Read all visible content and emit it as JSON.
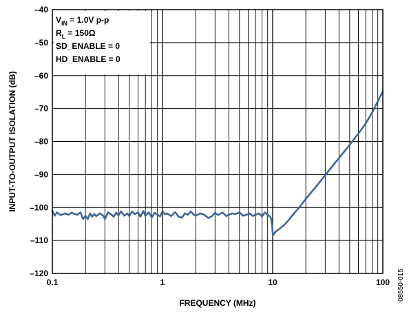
{
  "chart_data": {
    "type": "line",
    "xlabel": "FREQUENCY (MHz)",
    "ylabel": "INPUT-TO-OUTPUT ISOLATION (dB)",
    "x_scale": "log",
    "xlim": [
      0.1,
      100
    ],
    "ylim": [
      -120,
      -40
    ],
    "x_ticks": [
      0.1,
      1,
      10,
      100
    ],
    "x_tick_labels": [
      "0.1",
      "1",
      "10",
      "100"
    ],
    "y_ticks": [
      -40,
      -50,
      -60,
      -70,
      -80,
      -90,
      -100,
      -110,
      -120
    ],
    "y_tick_labels": [
      "–40",
      "–50",
      "–60",
      "–70",
      "–80",
      "–90",
      "–100",
      "–110",
      "–120"
    ],
    "grid": true,
    "line_color": "#3f6796",
    "annotation_lines": [
      {
        "main": "V",
        "sub": "IN",
        "rest": " = 1.0V p-p"
      },
      {
        "main": "R",
        "sub": "L",
        "rest": " = 150Ω"
      },
      {
        "main": "SD_ENABLE = 0",
        "sub": "",
        "rest": ""
      },
      {
        "main": "HD_ENABLE = 0",
        "sub": "",
        "rest": ""
      }
    ],
    "side_id": "08550-015",
    "series": [
      {
        "x": [
          0.1,
          0.105,
          0.11,
          0.115,
          0.12,
          0.13,
          0.14,
          0.15,
          0.16,
          0.17,
          0.18,
          0.19,
          0.2,
          0.21,
          0.22,
          0.23,
          0.24,
          0.25,
          0.27,
          0.29,
          0.3,
          0.32,
          0.34,
          0.36,
          0.38,
          0.4,
          0.42,
          0.45,
          0.48,
          0.5,
          0.53,
          0.56,
          0.6,
          0.63,
          0.67,
          0.7,
          0.75,
          0.8,
          0.85,
          0.9,
          0.95,
          1.0,
          1.05,
          1.1,
          1.2,
          1.3,
          1.4,
          1.5,
          1.6,
          1.7,
          1.8,
          1.9,
          2.0,
          2.2,
          2.4,
          2.6,
          2.8,
          3.0,
          3.2,
          3.5,
          3.8,
          4.0,
          4.3,
          4.6,
          5.0,
          5.4,
          5.8,
          6.2,
          6.6,
          7.0,
          7.5,
          8.0,
          8.5,
          9.0,
          9.5,
          9.7,
          9.9,
          10.0,
          10.2,
          10.5,
          11,
          12,
          13,
          14,
          15,
          16,
          18,
          20,
          25,
          30,
          35,
          40,
          50,
          60,
          70,
          80,
          90,
          100
        ],
        "y": [
          -101,
          -102.5,
          -101.5,
          -102,
          -102.3,
          -101.8,
          -102.2,
          -101.6,
          -102,
          -102.2,
          -101.5,
          -103.5,
          -102.5,
          -103.5,
          -101.8,
          -102.8,
          -102,
          -102.6,
          -101.8,
          -102.5,
          -103.5,
          -101.5,
          -102,
          -102.8,
          -101.6,
          -102.3,
          -101.2,
          -102.5,
          -101.8,
          -102.6,
          -101.2,
          -102,
          -101.5,
          -102.8,
          -101.1,
          -102.5,
          -101.5,
          -103,
          -101.6,
          -102.2,
          -102.7,
          -101.2,
          -102,
          -101.8,
          -102.6,
          -101.4,
          -102.8,
          -103.1,
          -101.8,
          -102.2,
          -101.2,
          -102,
          -102.5,
          -101.8,
          -102.2,
          -103.2,
          -102.7,
          -101.6,
          -102.3,
          -101.5,
          -102.6,
          -102.2,
          -101.8,
          -102,
          -101.5,
          -102.5,
          -102.2,
          -101.8,
          -102.6,
          -102.2,
          -101.8,
          -102.7,
          -101.5,
          -102.2,
          -102.8,
          -103.5,
          -105.5,
          -107.8,
          -108.2,
          -107.5,
          -107,
          -106,
          -105,
          -103.8,
          -102.5,
          -101.4,
          -99.4,
          -97.4,
          -93.5,
          -90.2,
          -87.4,
          -85,
          -81,
          -77.6,
          -74.5,
          -71.2,
          -67.8,
          -64.8
        ]
      }
    ]
  }
}
